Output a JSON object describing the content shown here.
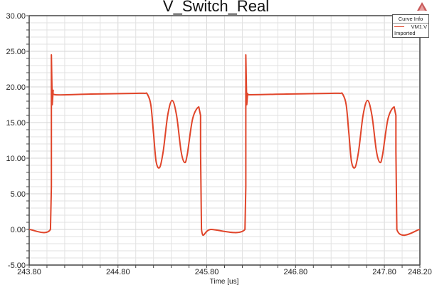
{
  "chart_data": {
    "type": "line",
    "title": "V_Switch_Real",
    "xlabel": "Time [us]",
    "ylabel": "",
    "xlim": [
      243.8,
      248.2
    ],
    "ylim": [
      -5,
      30
    ],
    "grid": true,
    "x_ticks": [
      "243.80",
      "244.80",
      "245.80",
      "246.80",
      "247.80",
      "248.20"
    ],
    "y_ticks": [
      "30.00",
      "25.00",
      "20.00",
      "15.00",
      "10.00",
      "5.00",
      "0.00",
      "-5.00"
    ],
    "legend": {
      "position": "top-right",
      "title": "Curve Info",
      "entries": [
        "VM1.V"
      ],
      "subtitle": "Imported"
    },
    "series": [
      {
        "name": "VM1.V",
        "color": "#e0452a",
        "x": [
          243.8,
          244.04,
          244.05,
          244.05,
          244.06,
          244.07,
          244.1,
          244.5,
          245.0,
          245.1,
          245.13,
          245.17,
          245.2,
          245.23,
          245.27,
          245.31,
          245.36,
          245.41,
          245.46,
          245.51,
          245.55,
          245.58,
          245.64,
          245.71,
          245.73,
          245.73,
          245.74,
          245.85,
          246.23,
          246.24,
          246.24,
          246.25,
          246.26,
          246.29,
          246.7,
          247.2,
          247.3,
          247.33,
          247.37,
          247.4,
          247.43,
          247.47,
          247.51,
          247.56,
          247.61,
          247.66,
          247.71,
          247.75,
          247.78,
          247.84,
          247.91,
          247.93,
          247.93,
          247.94,
          248.2
        ],
        "values": [
          0,
          0,
          6,
          24.5,
          17.5,
          19.5,
          18.9,
          19.0,
          19.1,
          19.1,
          19.0,
          17.5,
          13.5,
          9.5,
          8.7,
          11.0,
          16.0,
          18.1,
          16.0,
          11.0,
          9.4,
          10.5,
          15.5,
          17.2,
          16.0,
          11.0,
          0,
          0,
          0,
          6,
          24.5,
          17.5,
          19.0,
          18.9,
          19.0,
          19.1,
          19.1,
          19.0,
          17.5,
          13.5,
          9.5,
          8.7,
          11.0,
          16.0,
          18.1,
          16.0,
          11.0,
          9.4,
          10.5,
          15.5,
          17.2,
          16.0,
          11.0,
          0,
          0
        ]
      }
    ]
  },
  "colors": {
    "trace": "#e0452a",
    "grid": "#e2e2e2",
    "axis": "#444444"
  }
}
